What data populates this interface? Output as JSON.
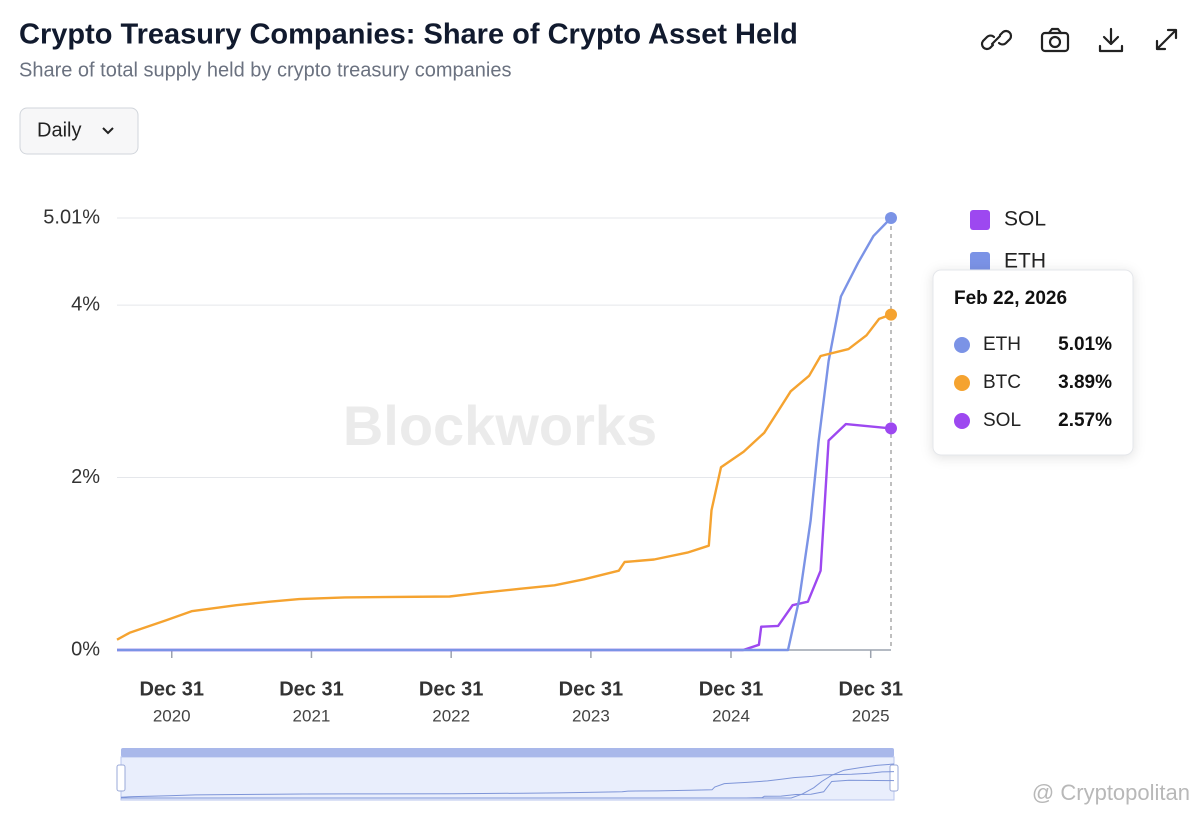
{
  "chart_data": {
    "type": "line",
    "title": "Crypto Treasury Companies: Share of Crypto Asset Held",
    "subtitle": "Share of total supply held by crypto treasury companies",
    "watermark": "Blockworks",
    "xlim": [
      "2020-08-10",
      "2026-02-22"
    ],
    "xticks": [
      {
        "value": "2020-12-31",
        "label": "Dec 31",
        "year": "2020"
      },
      {
        "value": "2021-12-31",
        "label": "Dec 31",
        "year": "2021"
      },
      {
        "value": "2022-12-31",
        "label": "Dec 31",
        "year": "2022"
      },
      {
        "value": "2023-12-31",
        "label": "Dec 31",
        "year": "2023"
      },
      {
        "value": "2024-12-31",
        "label": "Dec 31",
        "year": "2024"
      },
      {
        "value": "2025-12-31",
        "label": "Dec 31",
        "year": "2025"
      }
    ],
    "ylim": [
      0,
      5.01
    ],
    "yticks": [
      {
        "value": 0,
        "label": "0%"
      },
      {
        "value": 2,
        "label": "2%"
      },
      {
        "value": 4,
        "label": "4%"
      },
      {
        "value": 5.01,
        "label": "5.01%"
      }
    ],
    "grid": true,
    "legend": "right",
    "series": [
      {
        "name": "SOL",
        "color": "#9d48f0",
        "x": [
          "2020-08-10",
          "2025-02-01",
          "2025-03-14",
          "2025-03-20",
          "2025-05-03",
          "2025-06-10",
          "2025-07-20",
          "2025-08-22",
          "2025-09-12",
          "2025-10-27",
          "2026-02-22"
        ],
        "values": [
          0,
          0,
          0.06,
          0.27,
          0.28,
          0.52,
          0.56,
          0.92,
          2.43,
          2.62,
          2.57
        ]
      },
      {
        "name": "ETH",
        "color": "#7b93e6",
        "x": [
          "2020-08-10",
          "2025-05-29",
          "2025-06-27",
          "2025-07-27",
          "2025-08-17",
          "2025-09-12",
          "2025-10-14",
          "2025-11-28",
          "2026-01-07",
          "2026-02-22"
        ],
        "values": [
          0,
          0,
          0.58,
          1.5,
          2.43,
          3.35,
          4.1,
          4.49,
          4.8,
          5.01
        ]
      },
      {
        "name": "BTC",
        "color": "#f5a330",
        "x": [
          "2020-08-10",
          "2020-09-12",
          "2020-12-13",
          "2021-02-21",
          "2021-06-18",
          "2021-09-13",
          "2021-11-29",
          "2022-03-28",
          "2022-12-27",
          "2023-03-14",
          "2023-06-28",
          "2023-09-27",
          "2023-12-13",
          "2024-03-13",
          "2024-03-28",
          "2024-06-13",
          "2024-09-08",
          "2024-11-03",
          "2024-11-10",
          "2024-12-05",
          "2025-02-02",
          "2025-03-28",
          "2025-05-03",
          "2025-06-05",
          "2025-07-23",
          "2025-08-22",
          "2025-11-03",
          "2025-12-20",
          "2026-01-22",
          "2026-02-22"
        ],
        "values": [
          0.12,
          0.2,
          0.34,
          0.45,
          0.52,
          0.56,
          0.59,
          0.61,
          0.62,
          0.66,
          0.71,
          0.75,
          0.82,
          0.92,
          1.02,
          1.05,
          1.13,
          1.21,
          1.62,
          2.12,
          2.3,
          2.52,
          2.77,
          3.0,
          3.18,
          3.41,
          3.49,
          3.65,
          3.84,
          3.89
        ]
      }
    ],
    "tooltip": {
      "date": "Feb 22, 2026",
      "items": [
        {
          "name": "ETH",
          "value": 5.01,
          "label": "5.01%"
        },
        {
          "name": "BTC",
          "value": 3.89,
          "label": "3.89%"
        },
        {
          "name": "SOL",
          "value": 2.57,
          "label": "2.57%"
        }
      ]
    }
  },
  "controls": {
    "frequency": "Daily"
  },
  "credit": "@ Cryptopolitan"
}
